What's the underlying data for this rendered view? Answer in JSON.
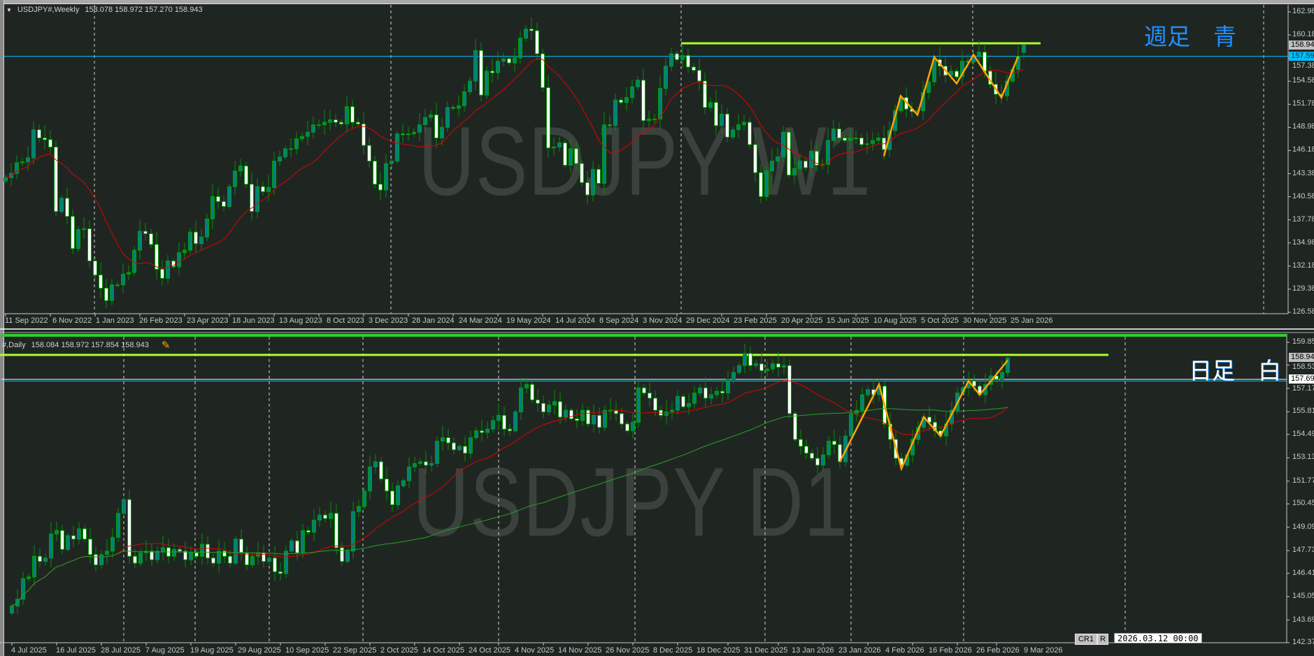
{
  "weekly_header": {
    "symbol": "USDJPY#,Weekly",
    "ohlc": "158.078 158.972 157.270 158.943"
  },
  "daily_header": {
    "symbol": "#,Daily",
    "ohlc": "158.084 158.972 157.854 158.943"
  },
  "weekly_watermark": "USDJPY W1",
  "daily_watermark": "USDJPY D1",
  "weekly_note": "週足　青",
  "daily_note": "日足　白",
  "status_bar": {
    "cr_label": "CR1",
    "r_label": "R",
    "datetime": "2026.03.12 00:00"
  },
  "colors": {
    "background": "#1f2622",
    "bull_body": "#008080",
    "bear_body": "#ffffff",
    "candle_outline": "#00a000",
    "ma_red": "#e00000",
    "ma_green": "#28a028",
    "zigzag": "#ffa500",
    "resistance": "#adff2f",
    "bid_line": "#00bfff",
    "grid_separator": "#c8c8c8"
  },
  "icons": {
    "collapse": "triangle-down-icon",
    "drawing_tool": "eraser-pencil-icon"
  },
  "chart_data": [
    {
      "type": "candlestick",
      "timeframe": "Weekly",
      "x_tick_labels": [
        "11 Sep 2022",
        "6 Nov 2022",
        "1 Jan 2023",
        "26 Feb 2023",
        "23 Apr 2023",
        "18 Jun 2023",
        "13 Aug 2023",
        "8 Oct 2023",
        "3 Dec 2023",
        "28 Jan 2024",
        "24 Mar 2024",
        "19 May 2024",
        "14 Jul 2024",
        "8 Sep 2024",
        "3 Nov 2024",
        "29 Dec 2024",
        "23 Feb 2025",
        "20 Apr 2025",
        "15 Jun 2025",
        "10 Aug 2025",
        "5 Oct 2025",
        "30 Nov 2025",
        "25 Jan 2026"
      ],
      "y_tick_labels": [
        "162.980",
        "160.180",
        "157.380",
        "154.580",
        "151.780",
        "148.980",
        "146.180",
        "143.380",
        "140.580",
        "137.780",
        "134.980",
        "132.180",
        "129.380",
        "126.580"
      ],
      "ylim": [
        126.58,
        162.98
      ],
      "first_bar": "11 Sep 2022",
      "last_ohlc": [
        158.078,
        158.972,
        157.27,
        158.943
      ],
      "closes": [
        142.9,
        143.4,
        144.7,
        144.8,
        145.3,
        148.7,
        147.7,
        147.5,
        146.6,
        138.8,
        140.4,
        138.2,
        134.3,
        136.6,
        136.7,
        132.8,
        131.1,
        129.5,
        128.0,
        129.9,
        129.9,
        131.2,
        131.4,
        134.1,
        136.4,
        136.1,
        134.8,
        131.8,
        130.7,
        132.8,
        132.1,
        133.8,
        134.1,
        136.3,
        134.9,
        135.7,
        137.9,
        140.6,
        140.0,
        139.4,
        141.8,
        143.7,
        144.3,
        142.1,
        138.8,
        141.8,
        141.2,
        141.7,
        144.9,
        145.4,
        146.4,
        146.4,
        147.6,
        147.9,
        148.4,
        149.3,
        149.3,
        149.6,
        149.9,
        149.6,
        149.4,
        151.5,
        149.6,
        149.4,
        146.8,
        144.9,
        142.1,
        141.4,
        144.6,
        144.9,
        148.2,
        148.1,
        148.2,
        148.4,
        149.3,
        150.2,
        150.5,
        147.7,
        149.0,
        151.4,
        151.3,
        151.6,
        153.3,
        154.6,
        158.3,
        152.9,
        155.8,
        155.6,
        157.0,
        157.3,
        156.8,
        157.4,
        159.8,
        160.9,
        160.7,
        157.9,
        153.8,
        146.5,
        146.6,
        147.1,
        144.4,
        146.4,
        144.6,
        142.3,
        140.8,
        143.9,
        142.2,
        149.3,
        149.2,
        152.3,
        152.0,
        152.6,
        153.9,
        154.7,
        149.8,
        150.0,
        150.0,
        153.7,
        156.4,
        157.9,
        157.2,
        157.7,
        156.3,
        155.9,
        154.6,
        151.4,
        152.0,
        149.2,
        150.6,
        147.8,
        148.7,
        149.3,
        149.6,
        146.9,
        143.5,
        140.6,
        143.7,
        144.9,
        145.4,
        148.4,
        143.2,
        144.0,
        144.9,
        144.1,
        146.1,
        144.4,
        144.5,
        147.4,
        148.8,
        147.7,
        147.4,
        147.7,
        147.7,
        146.9,
        147.0,
        147.4,
        147.7,
        146.3,
        148.6,
        151.0,
        152.6,
        151.2,
        150.9,
        151.0,
        153.2,
        154.5,
        157.2,
        156.4,
        155.3,
        155.8,
        155.1,
        157.0,
        156.9,
        157.7,
        158.1,
        155.8,
        154.2,
        153.0,
        152.8,
        154.6,
        156.0,
        157.6,
        158.943
      ],
      "moving_averages": [
        {
          "color": "#e00000",
          "period": 13
        }
      ],
      "zigzag": [
        [
          "2025-09-14",
          145.5
        ],
        [
          "2025-10-05",
          152.8
        ],
        [
          "2025-10-26",
          150.5
        ],
        [
          "2025-11-16",
          157.5
        ],
        [
          "2025-12-14",
          154.3
        ],
        [
          "2026-01-04",
          157.8
        ],
        [
          "2026-02-08",
          152.6
        ],
        [
          "2026-03-01",
          157.6
        ]
      ],
      "horizontal_lines": [
        {
          "price": 159.17,
          "color": "#adff2f",
          "kind": "resistance"
        },
        {
          "price": 157.592,
          "color": "#00bfff",
          "kind": "level"
        }
      ],
      "price_tags": [
        {
          "value": "158.943",
          "style": "current"
        },
        {
          "value": "157.592",
          "style": "level"
        }
      ]
    },
    {
      "type": "candlestick",
      "timeframe": "Daily",
      "x_tick_labels": [
        "4 Jul 2025",
        "16 Jul 2025",
        "28 Jul 2025",
        "7 Aug 2025",
        "19 Aug 2025",
        "29 Aug 2025",
        "10 Sep 2025",
        "22 Sep 2025",
        "2 Oct 2025",
        "14 Oct 2025",
        "24 Oct 2025",
        "4 Nov 2025",
        "14 Nov 2025",
        "26 Nov 2025",
        "8 Dec 2025",
        "18 Dec 2025",
        "31 Dec 2025",
        "13 Jan 2026",
        "23 Jan 2026",
        "4 Feb 2026",
        "16 Feb 2026",
        "26 Feb 2026",
        "9 Mar 2026"
      ],
      "y_tick_labels": [
        "159.850",
        "158.530",
        "157.170",
        "155.810",
        "154.490",
        "153.130",
        "151.770",
        "150.450",
        "149.090",
        "147.730",
        "146.410",
        "145.050",
        "143.690",
        "142.370"
      ],
      "ylim": [
        142.37,
        159.85
      ],
      "first_bar": "4 Jul 2025",
      "last_ohlc": [
        158.084,
        158.972,
        157.854,
        158.943
      ],
      "closes": [
        144.5,
        144.9,
        146.1,
        146.2,
        147.4,
        147.1,
        147.3,
        148.7,
        148.9,
        147.8,
        148.6,
        148.4,
        149.0,
        148.4,
        147.5,
        146.9,
        147.5,
        147.7,
        148.5,
        149.9,
        150.7,
        147.4,
        147.0,
        147.6,
        147.7,
        147.2,
        147.7,
        147.9,
        147.4,
        147.8,
        147.7,
        147.2,
        147.6,
        147.4,
        148.1,
        147.3,
        147.0,
        147.7,
        147.4,
        147.0,
        148.4,
        147.6,
        146.9,
        147.4,
        147.6,
        147.1,
        147.3,
        146.5,
        146.4,
        147.7,
        148.3,
        147.6,
        148.9,
        148.8,
        149.5,
        149.8,
        149.6,
        149.9,
        147.9,
        147.1,
        147.7,
        150.0,
        150.3,
        151.2,
        152.6,
        152.9,
        151.9,
        151.2,
        150.4,
        151.5,
        151.8,
        152.6,
        152.8,
        152.9,
        152.7,
        152.8,
        154.1,
        154.3,
        154.0,
        153.6,
        153.8,
        153.4,
        154.3,
        154.7,
        154.6,
        154.8,
        155.3,
        155.6,
        154.8,
        154.7,
        155.8,
        157.2,
        157.4,
        156.5,
        156.3,
        155.8,
        156.2,
        156.4,
        155.5,
        155.9,
        155.4,
        155.3,
        155.9,
        155.1,
        155.6,
        154.9,
        155.9,
        155.9,
        155.7,
        155.1,
        154.7,
        155.2,
        157.2,
        156.9,
        156.6,
        155.9,
        155.6,
        155.8,
        155.9,
        156.7,
        156.1,
        156.3,
        156.9,
        157.2,
        156.6,
        156.8,
        157.0,
        156.9,
        157.7,
        158.1,
        158.5,
        159.2,
        158.5,
        158.6,
        158.2,
        158.3,
        158.6,
        158.4,
        158.5,
        155.7,
        154.2,
        153.8,
        153.4,
        153.1,
        152.7,
        153.3,
        154.1,
        153.9,
        152.9,
        154.4,
        155.7,
        155.9,
        156.8,
        157.1,
        156.8,
        157.3,
        155.1,
        154.2,
        153.1,
        152.7,
        153.3,
        154.2,
        154.9,
        155.5,
        155.2,
        154.7,
        154.4,
        155.1,
        155.9,
        156.9,
        157.2,
        157.6,
        157.3,
        156.8,
        157.4,
        157.9,
        157.7,
        158.1,
        158.943
      ],
      "moving_averages": [
        {
          "color": "#e00000",
          "period": 20
        },
        {
          "color": "#28a028",
          "period": 75
        }
      ],
      "zigzag": [
        [
          "2026-01-28",
          152.9
        ],
        [
          "2026-02-06",
          157.4
        ],
        [
          "2026-02-12",
          152.5
        ],
        [
          "2026-02-18",
          155.5
        ],
        [
          "2026-02-23",
          154.4
        ],
        [
          "2026-03-02",
          157.6
        ],
        [
          "2026-03-04",
          156.8
        ],
        [
          "2026-03-11",
          158.8
        ]
      ],
      "horizontal_lines": [
        {
          "price": 160.2,
          "color": "#32cd32",
          "kind": "level"
        },
        {
          "price": 159.12,
          "color": "#adff2f",
          "kind": "resistance"
        },
        {
          "price": 157.693,
          "color": "#ffffff",
          "kind": "level"
        },
        {
          "price": 157.6,
          "color": "#00bfff",
          "kind": "level"
        }
      ],
      "price_tags": [
        {
          "value": "158.943",
          "style": "current"
        },
        {
          "value": "157.693",
          "style": "white"
        }
      ]
    }
  ]
}
